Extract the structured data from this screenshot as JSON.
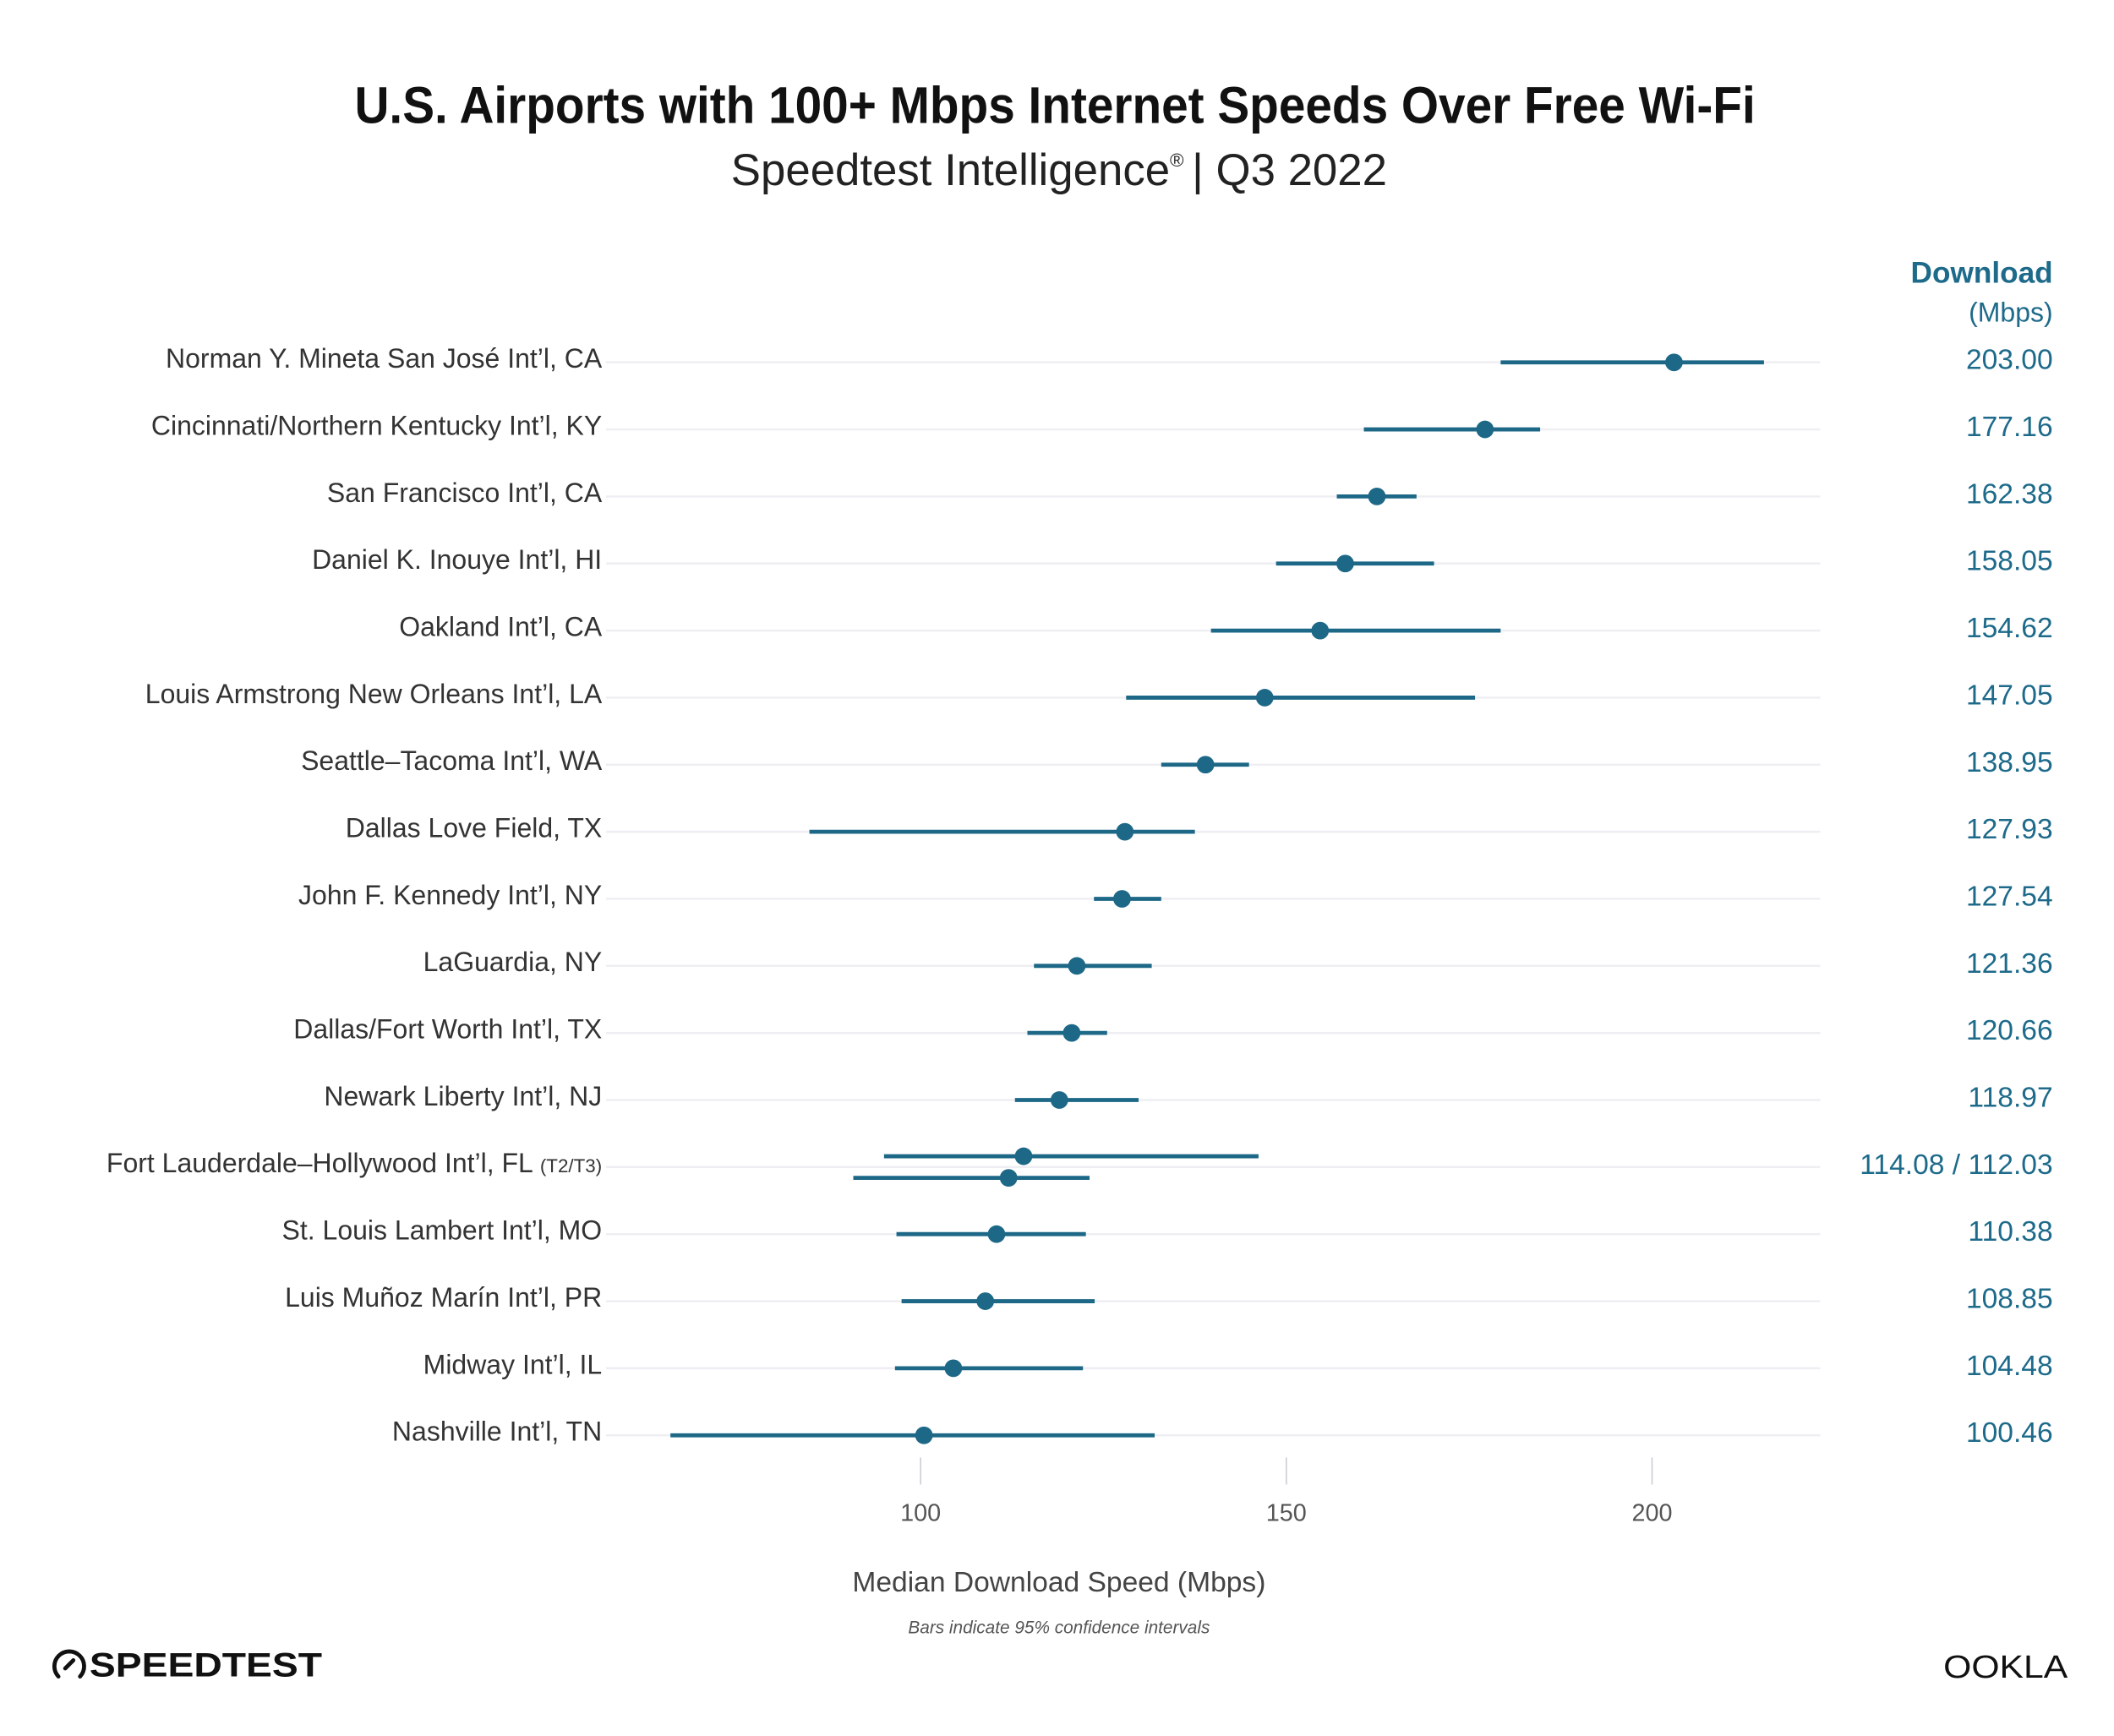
{
  "title": "U.S. Airports with 100+ Mbps Internet Speeds Over Free Wi-Fi",
  "subtitle": "Speedtest Intelligence",
  "subtitle_mark": "®",
  "subtitle_period": "| Q3 2022",
  "value_header": "Download",
  "value_header_unit": "(Mbps)",
  "footnote": "Bars indicate 95% confidence intervals",
  "logos": {
    "left": "SPEEDTEST",
    "right": "OOKLA"
  },
  "colors": {
    "accent": "#1d6887",
    "grid": "#eeeef3",
    "label": "#333333"
  },
  "chart_data": {
    "type": "dot-errorbar",
    "xlabel": "Median Download Speed (Mbps)",
    "xlim": [
      57,
      223
    ],
    "xticks": [
      100,
      150,
      200
    ],
    "grid": "horizontal row lines",
    "airports": [
      {
        "name": "Norman Y. Mineta San José Int’l, CA",
        "value_label": "203.00",
        "points": [
          {
            "median": 203.0,
            "ci": [
              179.3,
              215.3
            ]
          }
        ]
      },
      {
        "name": "Cincinnati/Northern Kentucky Int’l, KY",
        "value_label": "177.16",
        "points": [
          {
            "median": 177.16,
            "ci": [
              160.6,
              184.7
            ]
          }
        ]
      },
      {
        "name": "San Francisco Int’l, CA",
        "value_label": "162.38",
        "points": [
          {
            "median": 162.38,
            "ci": [
              156.9,
              167.8
            ]
          }
        ]
      },
      {
        "name": "Daniel K. Inouye Int’l, HI",
        "value_label": "158.05",
        "points": [
          {
            "median": 158.05,
            "ci": [
              148.6,
              170.2
            ]
          }
        ]
      },
      {
        "name": "Oakland Int’l, CA",
        "value_label": "154.62",
        "points": [
          {
            "median": 154.62,
            "ci": [
              139.7,
              179.3
            ]
          }
        ]
      },
      {
        "name": "Louis Armstrong New Orleans Int’l, LA",
        "value_label": "147.05",
        "points": [
          {
            "median": 147.05,
            "ci": [
              128.1,
              175.8
            ]
          }
        ]
      },
      {
        "name": "Seattle–Tacoma Int’l, WA",
        "value_label": "138.95",
        "points": [
          {
            "median": 138.95,
            "ci": [
              132.9,
              144.9
            ]
          }
        ]
      },
      {
        "name": "Dallas Love Field, TX",
        "value_label": "127.93",
        "points": [
          {
            "median": 127.93,
            "ci": [
              84.8,
              137.5
            ]
          }
        ]
      },
      {
        "name": "John F. Kennedy Int’l, NY",
        "value_label": "127.54",
        "points": [
          {
            "median": 127.54,
            "ci": [
              123.7,
              132.9
            ]
          }
        ]
      },
      {
        "name": "LaGuardia, NY",
        "value_label": "121.36",
        "points": [
          {
            "median": 121.36,
            "ci": [
              115.5,
              131.6
            ]
          }
        ]
      },
      {
        "name": "Dallas/Fort Worth Int’l, TX",
        "value_label": "120.66",
        "points": [
          {
            "median": 120.66,
            "ci": [
              114.6,
              125.5
            ]
          }
        ]
      },
      {
        "name": "Newark Liberty Int’l, NJ",
        "value_label": "118.97",
        "points": [
          {
            "median": 118.97,
            "ci": [
              112.9,
              129.8
            ]
          }
        ]
      },
      {
        "name": "Fort Lauderdale–Hollywood Int’l, FL",
        "suffix": "(T2/T3)",
        "value_label": "114.08 / 112.03",
        "points": [
          {
            "median": 114.08,
            "ci": [
              95.0,
              146.2
            ]
          },
          {
            "median": 112.03,
            "ci": [
              90.8,
              123.1
            ]
          }
        ]
      },
      {
        "name": "St. Louis Lambert Int’l, MO",
        "value_label": "110.38",
        "points": [
          {
            "median": 110.38,
            "ci": [
              96.7,
              122.6
            ]
          }
        ]
      },
      {
        "name": "Luis Muñoz Marín Int’l, PR",
        "value_label": "108.85",
        "points": [
          {
            "median": 108.85,
            "ci": [
              97.4,
              123.8
            ]
          }
        ]
      },
      {
        "name": "Midway Int’l, IL",
        "value_label": "104.48",
        "points": [
          {
            "median": 104.48,
            "ci": [
              96.5,
              122.2
            ]
          }
        ]
      },
      {
        "name": "Nashville Int’l, TN",
        "value_label": "100.46",
        "points": [
          {
            "median": 100.46,
            "ci": [
              65.8,
              132.0
            ]
          }
        ]
      }
    ]
  }
}
